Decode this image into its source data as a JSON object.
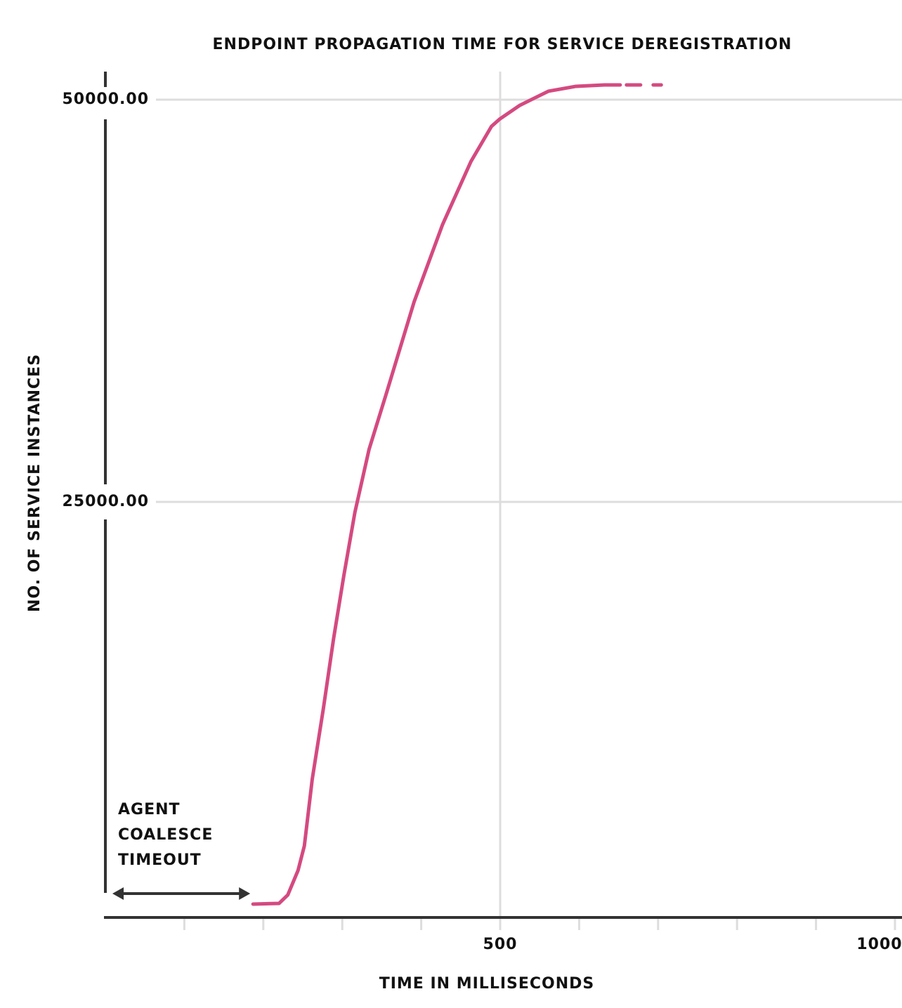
{
  "chart_data": {
    "type": "line",
    "title": "ENDPOINT PROPAGATION TIME FOR SERVICE DEREGISTRATION",
    "xlabel": "TIME IN MILLISECONDS",
    "ylabel": "NO. OF SERVICE INSTANCES",
    "xlim": [
      0,
      1000
    ],
    "ylim": [
      -830,
      51745
    ],
    "xticks": [
      500,
      1000
    ],
    "xminor_ticks": [
      100,
      200,
      300,
      400,
      600,
      700,
      800,
      900
    ],
    "yticks": [
      {
        "value": 25000,
        "label": "25000.00"
      },
      {
        "value": 50000,
        "label": "50000.00"
      }
    ],
    "grid": true,
    "series": [
      {
        "color": "#d44a80",
        "dashed": false,
        "x": [
          187,
          220,
          231,
          244,
          252,
          262,
          276,
          289,
          302,
          316,
          334,
          356,
          391,
          427,
          463,
          489,
          499,
          525,
          561,
          596,
          632,
          652
        ],
        "values": [
          0,
          44,
          567,
          2094,
          3621,
          7766,
          12129,
          16492,
          20419,
          24346,
          28273,
          31763,
          37435,
          42235,
          46161,
          48343,
          48779,
          49652,
          50525,
          50830,
          50917,
          50917
        ]
      },
      {
        "color": "#d44a80",
        "dashed": true,
        "x": [
          660,
          704
        ],
        "values": [
          50917,
          50917
        ]
      }
    ],
    "annotation": {
      "lines": [
        "AGENT",
        "COALESCE",
        "TIMEOUT"
      ],
      "arrow_x": [
        0,
        187
      ]
    }
  }
}
